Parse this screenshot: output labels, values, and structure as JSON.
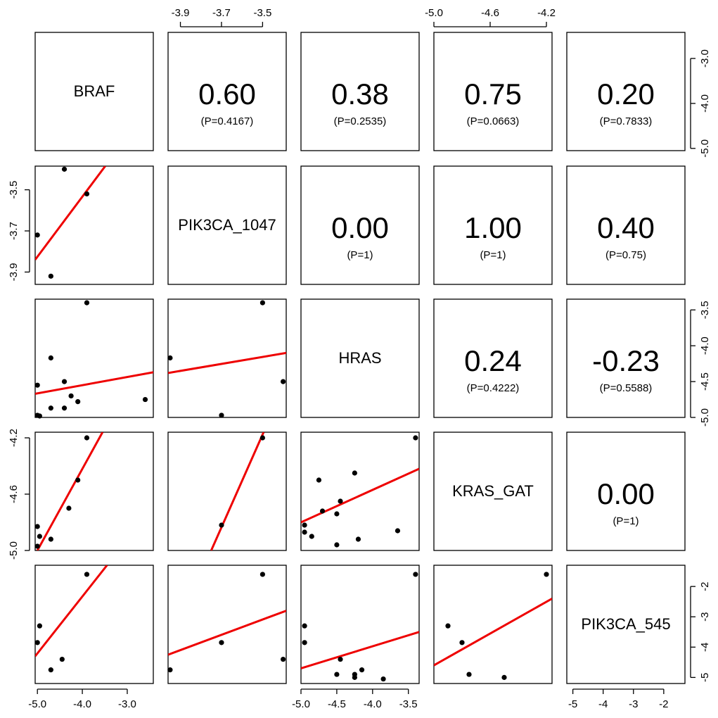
{
  "chart_data": {
    "type": "scatter-matrix",
    "variables": [
      "BRAF",
      "PIK3CA_1047",
      "HRAS",
      "KRAS_GAT",
      "PIK3CA_545"
    ],
    "axes": [
      {
        "range": [
          -5.05,
          -2.42
        ],
        "ticks": [
          -3.0,
          -4.0,
          -5.0
        ],
        "tick_labels": [
          "-3.0",
          "-4.0",
          "-5.0"
        ]
      },
      {
        "range": [
          -3.96,
          -3.385
        ],
        "ticks": [
          -3.9,
          -3.7,
          -3.5
        ],
        "tick_labels": [
          "-3.9",
          "-3.7",
          "-3.5"
        ]
      },
      {
        "range": [
          -5.0,
          -3.35
        ],
        "ticks": [
          -3.5,
          -4.0,
          -4.5,
          -5.0
        ],
        "tick_labels": [
          "-3.5",
          "-4.0",
          "-4.5",
          "-5.0"
        ]
      },
      {
        "range": [
          -5.0,
          -4.16
        ],
        "ticks": [
          -5.0,
          -4.6,
          -4.2
        ],
        "tick_labels": [
          "-5.0",
          "-4.6",
          "-4.2"
        ]
      },
      {
        "range": [
          -5.2,
          -1.3
        ],
        "ticks": [
          -2,
          -3,
          -4,
          -5
        ],
        "tick_labels": [
          "-2",
          "-3",
          "-4",
          "-5"
        ]
      }
    ],
    "bottom_ticks": [
      {
        "col": 0,
        "axis": 0,
        "ticks": [
          -5.0,
          -4.0,
          -3.0
        ],
        "labels": [
          "-5.0",
          "-4.0",
          "-3.0"
        ]
      },
      {
        "col": 2,
        "axis": 2,
        "ticks": [
          -5.0,
          -4.5,
          -4.0,
          -3.5
        ],
        "labels": [
          "-5.0",
          "-4.5",
          "-4.0",
          "-3.5"
        ]
      },
      {
        "col": 4,
        "axis": 4,
        "ticks": [
          -5,
          -4,
          -3,
          -2
        ],
        "labels": [
          "-5",
          "-4",
          "-3",
          "-2"
        ]
      }
    ],
    "top_ticks": [
      {
        "col": 1,
        "axis": 1,
        "ticks": [
          -3.9,
          -3.7,
          -3.5
        ],
        "labels": [
          "-3.9",
          "-3.7",
          "-3.5"
        ]
      },
      {
        "col": 3,
        "axis": 3,
        "ticks": [
          -5.0,
          -4.6,
          -4.2
        ],
        "labels": [
          "-5.0",
          "-4.6",
          "-4.2"
        ]
      }
    ],
    "left_ticks": [
      {
        "row": 1,
        "axis": 1,
        "ticks": [
          -3.5,
          -3.7,
          -3.9
        ],
        "labels": [
          "-3.5",
          "-3.7",
          "-3.9"
        ]
      },
      {
        "row": 3,
        "axis": 3,
        "ticks": [
          -4.2,
          -4.6,
          -5.0
        ],
        "labels": [
          "-4.2",
          "-4.6",
          "-5.0"
        ]
      }
    ],
    "right_ticks": [
      {
        "row": 0,
        "axis": 0,
        "ticks": [
          -3.0,
          -4.0,
          -5.0
        ],
        "labels": [
          "-3.0",
          "-4.0",
          "-5.0"
        ]
      },
      {
        "row": 2,
        "axis": 2,
        "ticks": [
          -3.5,
          -4.0,
          -4.5,
          -5.0
        ],
        "labels": [
          "-3.5",
          "-4.0",
          "-4.5",
          "-5.0"
        ]
      },
      {
        "row": 4,
        "axis": 4,
        "ticks": [
          -2,
          -3,
          -4,
          -5
        ],
        "labels": [
          "-2",
          "-3",
          "-4",
          "-5"
        ]
      }
    ],
    "correlations": [
      {
        "row": 0,
        "col": 1,
        "r": "0.60",
        "p": "(P=0.4167)"
      },
      {
        "row": 0,
        "col": 2,
        "r": "0.38",
        "p": "(P=0.2535)"
      },
      {
        "row": 0,
        "col": 3,
        "r": "0.75",
        "p": "(P=0.0663)"
      },
      {
        "row": 0,
        "col": 4,
        "r": "0.20",
        "p": "(P=0.7833)"
      },
      {
        "row": 1,
        "col": 2,
        "r": "0.00",
        "p": "(P=1)"
      },
      {
        "row": 1,
        "col": 3,
        "r": "1.00",
        "p": "(P=1)"
      },
      {
        "row": 1,
        "col": 4,
        "r": "0.40",
        "p": "(P=0.75)"
      },
      {
        "row": 2,
        "col": 3,
        "r": "0.24",
        "p": "(P=0.4222)"
      },
      {
        "row": 2,
        "col": 4,
        "r": "-0.23",
        "p": "(P=0.5588)"
      },
      {
        "row": 3,
        "col": 4,
        "r": "0.00",
        "p": "(P=1)"
      }
    ],
    "scatter_panels": [
      {
        "row": 1,
        "col": 0,
        "points": [
          [
            -4.4,
            -3.4
          ],
          [
            -3.9,
            -3.52
          ],
          [
            -5.0,
            -3.72
          ],
          [
            -4.7,
            -3.92
          ]
        ],
        "fit": [
          [
            -5.05,
            -3.84
          ],
          [
            -3.49,
            -3.385
          ]
        ]
      },
      {
        "row": 2,
        "col": 0,
        "points": [
          [
            -3.9,
            -3.4
          ],
          [
            -4.7,
            -4.17
          ],
          [
            -5.0,
            -4.55
          ],
          [
            -4.4,
            -4.5
          ],
          [
            -4.25,
            -4.7
          ],
          [
            -4.1,
            -4.78
          ],
          [
            -4.7,
            -4.87
          ],
          [
            -4.4,
            -4.87
          ],
          [
            -2.6,
            -4.75
          ],
          [
            -5.0,
            -4.97
          ],
          [
            -4.95,
            -4.98
          ]
        ],
        "fit": [
          [
            -5.05,
            -4.67
          ],
          [
            -2.42,
            -4.37
          ]
        ]
      },
      {
        "row": 2,
        "col": 1,
        "points": [
          [
            -3.5,
            -3.4
          ],
          [
            -3.95,
            -4.17
          ],
          [
            -3.4,
            -4.5
          ],
          [
            -3.7,
            -4.97
          ]
        ],
        "fit": [
          [
            -3.96,
            -4.38
          ],
          [
            -3.385,
            -4.1
          ]
        ]
      },
      {
        "row": 3,
        "col": 0,
        "points": [
          [
            -3.9,
            -4.2
          ],
          [
            -4.1,
            -4.5
          ],
          [
            -4.3,
            -4.7
          ],
          [
            -5.0,
            -4.83
          ],
          [
            -4.95,
            -4.9
          ],
          [
            -4.7,
            -4.92
          ],
          [
            -5.0,
            -4.97
          ]
        ],
        "fit": [
          [
            -5.0,
            -5.0
          ],
          [
            -3.55,
            -4.16
          ]
        ]
      },
      {
        "row": 3,
        "col": 1,
        "points": [
          [
            -3.5,
            -4.2
          ],
          [
            -3.7,
            -4.82
          ]
        ],
        "fit": [
          [
            -3.75,
            -5.0
          ],
          [
            -3.495,
            -4.16
          ]
        ]
      },
      {
        "row": 3,
        "col": 2,
        "points": [
          [
            -3.4,
            -4.2
          ],
          [
            -4.25,
            -4.45
          ],
          [
            -4.75,
            -4.5
          ],
          [
            -4.45,
            -4.65
          ],
          [
            -4.7,
            -4.72
          ],
          [
            -4.5,
            -4.74
          ],
          [
            -4.95,
            -4.82
          ],
          [
            -4.95,
            -4.87
          ],
          [
            -3.65,
            -4.86
          ],
          [
            -4.85,
            -4.9
          ],
          [
            -4.2,
            -4.92
          ],
          [
            -4.5,
            -4.96
          ]
        ],
        "fit": [
          [
            -5.0,
            -4.8
          ],
          [
            -3.35,
            -4.42
          ]
        ]
      },
      {
        "row": 4,
        "col": 0,
        "points": [
          [
            -3.9,
            -1.6
          ],
          [
            -4.95,
            -3.3
          ],
          [
            -5.0,
            -3.85
          ],
          [
            -4.45,
            -4.4
          ],
          [
            -4.7,
            -4.75
          ]
        ],
        "fit": [
          [
            -5.05,
            -4.3
          ],
          [
            -3.45,
            -1.3
          ]
        ]
      },
      {
        "row": 4,
        "col": 1,
        "points": [
          [
            -3.5,
            -1.6
          ],
          [
            -3.7,
            -3.85
          ],
          [
            -3.4,
            -4.4
          ],
          [
            -3.95,
            -4.75
          ]
        ],
        "fit": [
          [
            -3.96,
            -4.25
          ],
          [
            -3.385,
            -2.8
          ]
        ]
      },
      {
        "row": 4,
        "col": 2,
        "points": [
          [
            -3.4,
            -1.6
          ],
          [
            -4.95,
            -3.3
          ],
          [
            -4.95,
            -3.85
          ],
          [
            -4.45,
            -4.4
          ],
          [
            -4.15,
            -4.75
          ],
          [
            -4.5,
            -4.9
          ],
          [
            -4.25,
            -4.9
          ],
          [
            -4.25,
            -5.0
          ],
          [
            -3.85,
            -5.05
          ]
        ],
        "fit": [
          [
            -5.0,
            -4.7
          ],
          [
            -3.35,
            -3.5
          ]
        ]
      },
      {
        "row": 4,
        "col": 3,
        "points": [
          [
            -4.2,
            -1.6
          ],
          [
            -4.9,
            -3.3
          ],
          [
            -4.8,
            -3.85
          ],
          [
            -4.75,
            -4.9
          ],
          [
            -4.5,
            -5.0
          ]
        ],
        "fit": [
          [
            -5.0,
            -4.6
          ],
          [
            -4.16,
            -2.4
          ]
        ]
      }
    ]
  }
}
